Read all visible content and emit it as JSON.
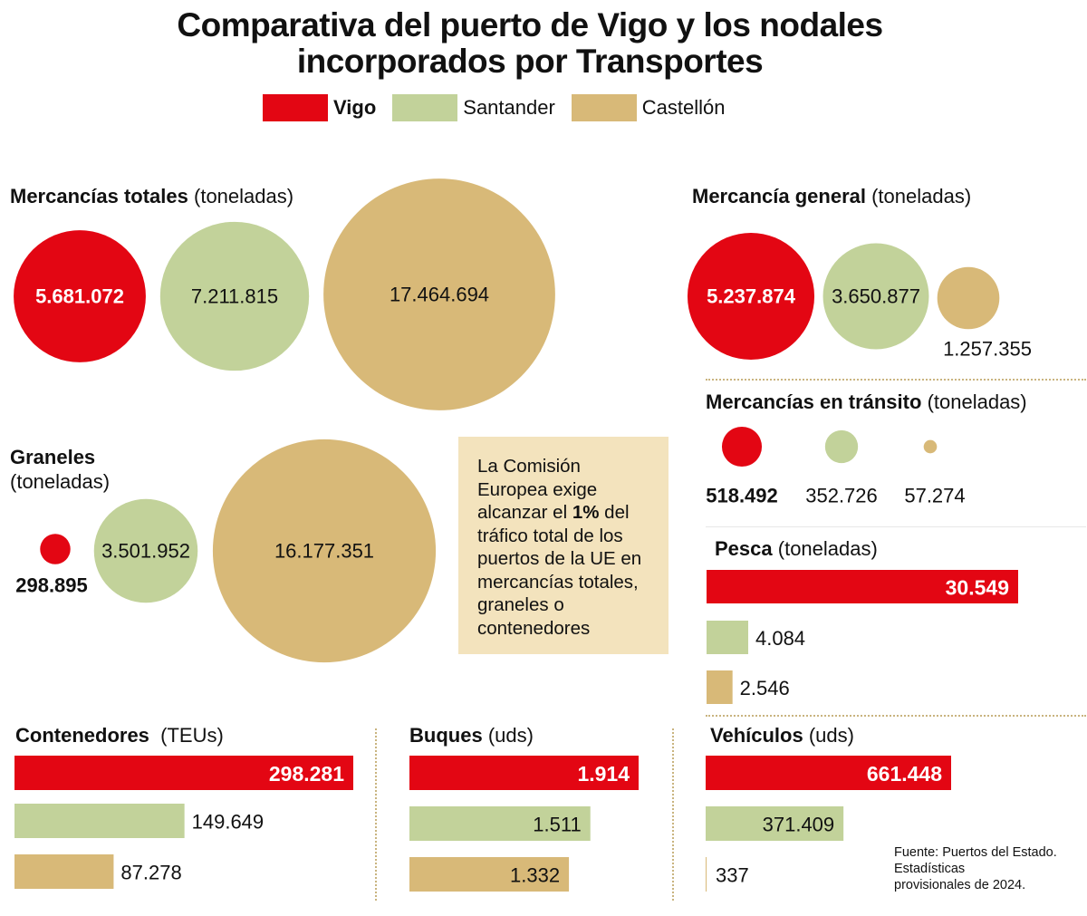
{
  "title_line1": "Comparativa del puerto de Vigo y los nodales",
  "title_line2": "incorporados por Transportes",
  "colors": {
    "Vigo": "#e30613",
    "Santander": "#c2d29a",
    "Castellón": "#d8b978"
  },
  "legend": [
    "Vigo",
    "Santander",
    "Castellón"
  ],
  "note": {
    "pre": "La Comisión Europea exige alcanzar el ",
    "bold": "1%",
    "post": " del tráfico total de los puertos de la UE en mercancías totales, graneles o contenedores"
  },
  "source": [
    "Fuente: Puertos del Estado.",
    "Estadísticas",
    "provisionales de 2024."
  ],
  "chart_data": [
    {
      "type": "bubble",
      "title": "Mercancías totales",
      "unit": "(toneladas)",
      "categories": [
        "Vigo",
        "Santander",
        "Castellón"
      ],
      "values": [
        5681072,
        7211815,
        17464694
      ],
      "labels": [
        "5.681.072",
        "7.211.815",
        "17.464.694"
      ]
    },
    {
      "type": "bubble",
      "title": "Mercancía general",
      "unit": "(toneladas)",
      "categories": [
        "Vigo",
        "Santander",
        "Castellón"
      ],
      "values": [
        5237874,
        3650877,
        1257355
      ],
      "labels": [
        "5.237.874",
        "3.650.877",
        "1.257.355"
      ]
    },
    {
      "type": "bubble",
      "title": "Graneles",
      "unit": "(toneladas)",
      "categories": [
        "Vigo",
        "Santander",
        "Castellón"
      ],
      "values": [
        298895,
        3501952,
        16177351
      ],
      "labels": [
        "298.895",
        "3.501.952",
        "16.177.351"
      ]
    },
    {
      "type": "bubble",
      "title": "Mercancías en tránsito",
      "unit": "(toneladas)",
      "categories": [
        "Vigo",
        "Santander",
        "Castellón"
      ],
      "values": [
        518492,
        352726,
        57274
      ],
      "labels": [
        "518.492",
        "352.726",
        "57.274"
      ]
    },
    {
      "type": "bar",
      "title": "Pesca",
      "unit": "(toneladas)",
      "categories": [
        "Vigo",
        "Santander",
        "Castellón"
      ],
      "values": [
        30549,
        4084,
        2546
      ],
      "labels": [
        "30.549",
        "4.084",
        "2.546"
      ]
    },
    {
      "type": "bar",
      "title": "Contenedores",
      "unit": "(TEUs)",
      "categories": [
        "Vigo",
        "Santander",
        "Castellón"
      ],
      "values": [
        298281,
        149649,
        87278
      ],
      "labels": [
        "298.281",
        "149.649",
        "87.278"
      ]
    },
    {
      "type": "bar",
      "title": "Buques",
      "unit": "(uds)",
      "categories": [
        "Vigo",
        "Santander",
        "Castellón"
      ],
      "values": [
        1914,
        1511,
        1332
      ],
      "labels": [
        "1.914",
        "1.511",
        "1.332"
      ]
    },
    {
      "type": "bar",
      "title": "Vehículos",
      "unit": "(uds)",
      "categories": [
        "Vigo",
        "Santander",
        "Castellón"
      ],
      "values": [
        661448,
        371409,
        337
      ],
      "labels": [
        "661.448",
        "371.409",
        "337"
      ]
    }
  ]
}
